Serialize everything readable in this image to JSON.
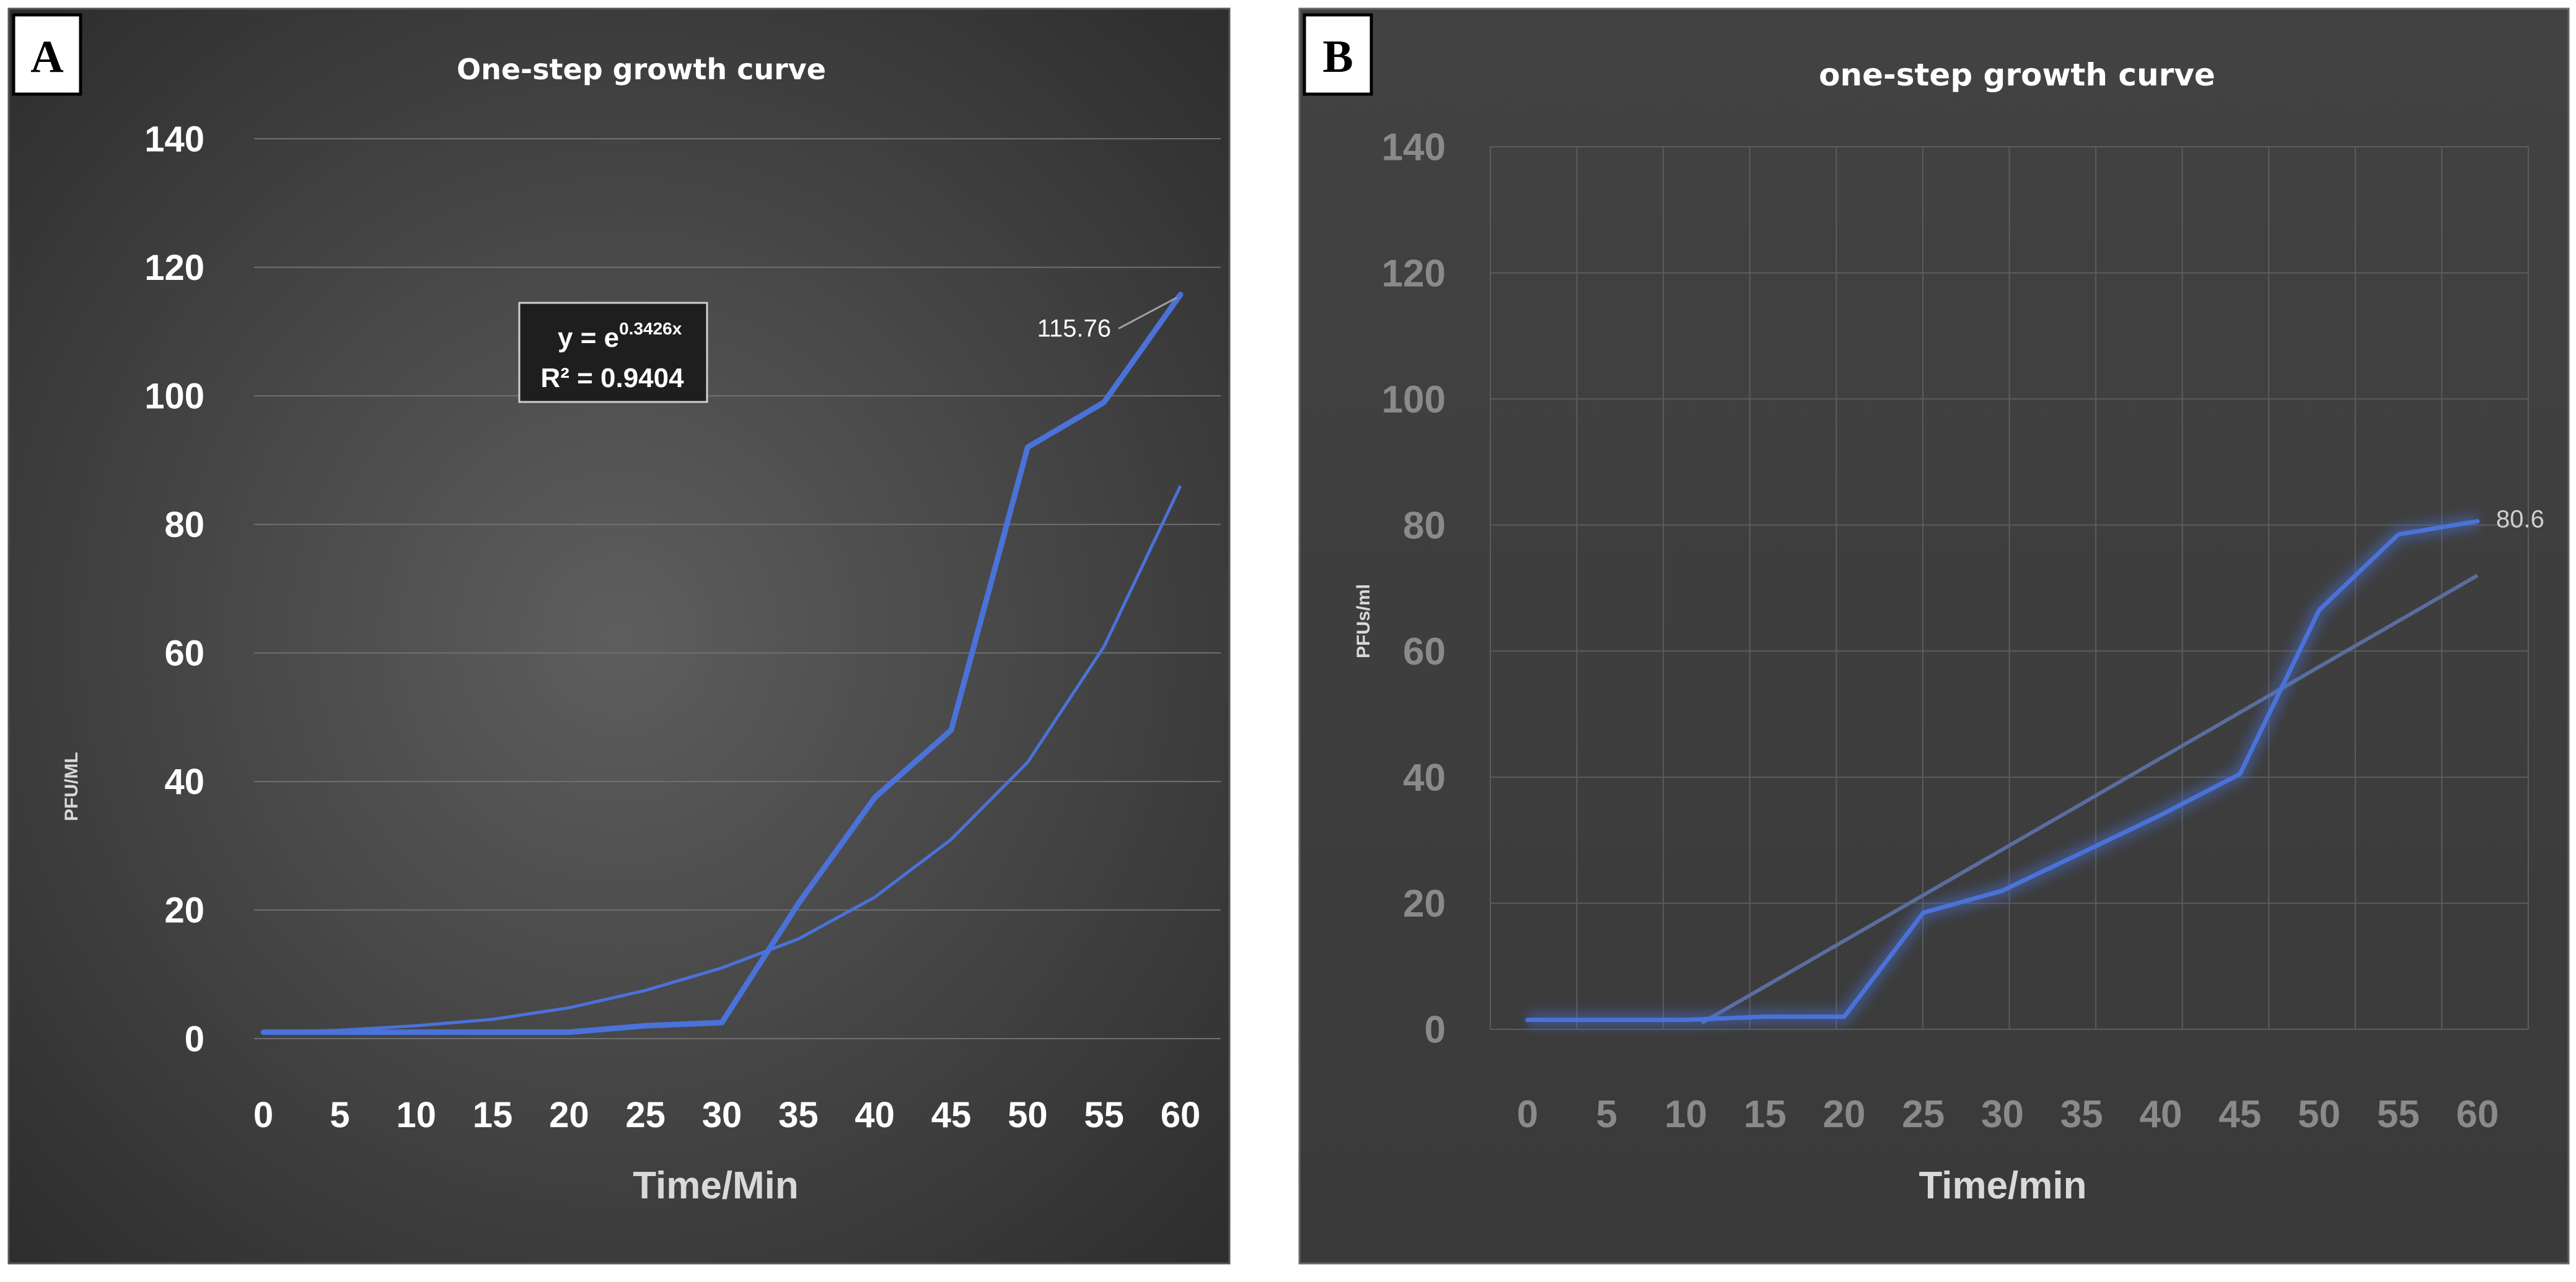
{
  "chart_data": [
    {
      "panel_label": "A",
      "type": "line",
      "title": "One-step growth curve",
      "xlabel": "Time/Min",
      "ylabel": "PFU/ML",
      "x": [
        0,
        5,
        10,
        15,
        20,
        25,
        30,
        35,
        40,
        45,
        50,
        55,
        60
      ],
      "xticks": [
        "0",
        "5",
        "10",
        "15",
        "20",
        "25",
        "30",
        "35",
        "40",
        "45",
        "50",
        "55",
        "60"
      ],
      "yticks": [
        "0",
        "20",
        "40",
        "60",
        "80",
        "100",
        "120",
        "140"
      ],
      "ylim": [
        0,
        140
      ],
      "grid": "horizontal",
      "series": [
        {
          "name": "PFU/ML",
          "values": [
            1,
            1,
            1,
            1,
            1,
            2,
            2.5,
            21,
            37.5,
            48,
            92,
            99,
            115.76
          ],
          "color": "#4a72d9"
        }
      ],
      "trendline": {
        "type": "exponential",
        "equation_prefix": "y = e",
        "equation_exponent": "0.3426x",
        "r_squared": "R² = 0.9404",
        "values": [
          1,
          1.3,
          2,
          3,
          4.8,
          7.5,
          11,
          15.5,
          22,
          31,
          43,
          61,
          86
        ],
        "color": "#4a72d9"
      },
      "data_label": "115.76"
    },
    {
      "panel_label": "B",
      "type": "line",
      "title": "one-step growth curve",
      "xlabel": "Time/min",
      "ylabel": "PFUs/ml",
      "x": [
        0,
        5,
        10,
        15,
        20,
        25,
        30,
        35,
        40,
        45,
        50,
        55,
        60
      ],
      "xticks": [
        "0",
        "5",
        "10",
        "15",
        "20",
        "25",
        "30",
        "35",
        "40",
        "45",
        "50",
        "55",
        "60"
      ],
      "yticks": [
        "0",
        "20",
        "40",
        "60",
        "80",
        "100",
        "120",
        "140"
      ],
      "ylim": [
        0,
        140
      ],
      "grid": "both",
      "series": [
        {
          "name": "PFUs/ml",
          "values": [
            1.5,
            1.5,
            1.5,
            2,
            2,
            18.5,
            22,
            28,
            34,
            40.5,
            66.5,
            78.5,
            80.6
          ],
          "color": "#4a72d9"
        }
      ],
      "trendline": {
        "type": "linear",
        "start": [
          11,
          1
        ],
        "end": [
          60,
          72
        ],
        "color": "#5a6e9e"
      },
      "data_label": "80.6"
    }
  ]
}
